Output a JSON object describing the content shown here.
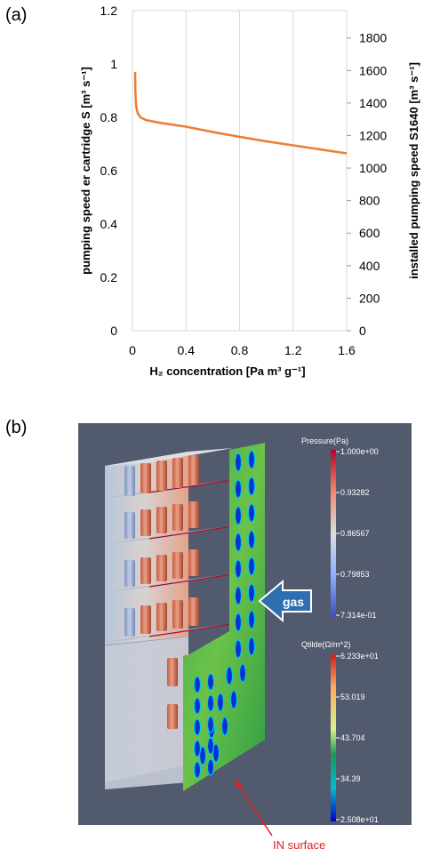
{
  "panel_a_label": "(a)",
  "panel_b_label": "(b)",
  "chart_data": {
    "type": "line",
    "title": "",
    "xlabel": "H₂ concentration [Pa m³ g⁻¹]",
    "ylabel": "pumping speed er cartridge S [m³ s⁻¹]",
    "y2label": "installed pumping speed S1640 [m³ s⁻¹]",
    "xlim": [
      0,
      1.6
    ],
    "ylim": [
      0,
      1.2
    ],
    "y2lim": [
      0,
      1968
    ],
    "x_ticks": [
      "0",
      "0.4",
      "0.8",
      "1.2",
      "1.6"
    ],
    "y_ticks": [
      "0",
      "0.2",
      "0.4",
      "0.6",
      "0.8",
      "1",
      "1.2"
    ],
    "y2_ticks": [
      "0",
      "200",
      "400",
      "600",
      "800",
      "1000",
      "1200",
      "1400",
      "1600",
      "1800"
    ],
    "grid": "vertical",
    "series": [
      {
        "color": "#ed7d31",
        "x": [
          0.02,
          0.022,
          0.025,
          0.03,
          0.04,
          0.06,
          0.1,
          0.15,
          0.2,
          0.4,
          0.6,
          0.8,
          1.0,
          1.2,
          1.4,
          1.6
        ],
        "y": [
          0.97,
          0.9,
          0.86,
          0.835,
          0.815,
          0.8,
          0.79,
          0.785,
          0.78,
          0.765,
          0.745,
          0.727,
          0.71,
          0.695,
          0.68,
          0.665
        ]
      }
    ]
  },
  "simulation": {
    "pressure_legend": {
      "title": "Pressure(Pa)",
      "ticks": [
        "1.000e+00",
        "0.93282",
        "0.86567",
        "0.79853",
        "7.314e-01"
      ]
    },
    "heat_legend": {
      "title": "Qtilde(Ω/m^2)",
      "ticks": [
        "6.233e+01",
        "53.019",
        "43.704",
        "34.39",
        "2.508e+01"
      ]
    },
    "gas_label": "gas",
    "annotation": "IN surface",
    "colors": {
      "background": "#525a6e",
      "arrow": "#2f6fb0",
      "annotation": "#e02020"
    }
  }
}
